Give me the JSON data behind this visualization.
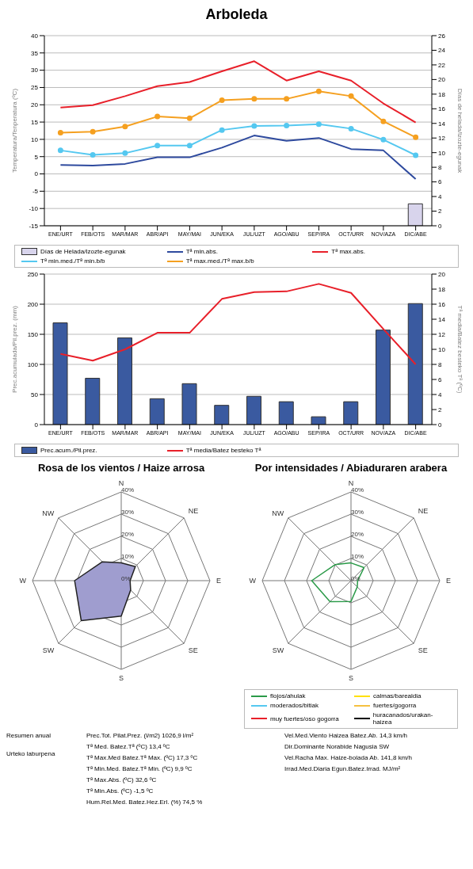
{
  "chart_data": [
    {
      "type": "line",
      "title": "Arboleda",
      "categories": [
        "ENE/URT",
        "FEB/OTS",
        "MAR/MAR",
        "ABR/API",
        "MAY/MAI",
        "JUN/EKA",
        "JUL/UZT",
        "AGO/ABU",
        "SEP/IRA",
        "OCT/URR",
        "NOV/AZA",
        "DIC/ABE"
      ],
      "ylabel": "Temperatura/Tenperatura (ºC)",
      "y2label": "Días de helada/Izozte-egunak",
      "ylim": [
        -15,
        40
      ],
      "yticks": [
        -15,
        -10,
        -5,
        0,
        5,
        10,
        15,
        20,
        25,
        30,
        35,
        40
      ],
      "y2lim": [
        0,
        26
      ],
      "y2ticks": [
        0,
        2,
        4,
        6,
        8,
        10,
        12,
        14,
        16,
        18,
        20,
        22,
        24,
        26
      ],
      "grid": "y",
      "legend": "bottom",
      "series": [
        {
          "name": "Días de Helada/Izozte-egunak",
          "type": "bar",
          "axis": "y2",
          "color": "#d8d4ec",
          "values": [
            0,
            0,
            0,
            0,
            0,
            0,
            0,
            0,
            0,
            0,
            0,
            3
          ]
        },
        {
          "name": "Tª min.abs.",
          "color": "#2e4a9e",
          "marker": "none",
          "values": [
            2.6,
            2.4,
            2.9,
            4.8,
            4.8,
            7.6,
            11.1,
            9.6,
            10.4,
            7.2,
            6.8,
            -1.5
          ]
        },
        {
          "name": "Tª max.abs.",
          "color": "#e8202a",
          "marker": "none",
          "values": [
            19.2,
            19.9,
            22.5,
            25.4,
            26.6,
            29.7,
            32.6,
            27,
            29.7,
            27,
            20.4,
            14.9
          ]
        },
        {
          "name": "Tª min.med./Tª min.b/b",
          "color": "#55c8f0",
          "marker": "circle",
          "values": [
            6.8,
            5.5,
            6,
            8.2,
            8.2,
            12.7,
            13.9,
            14,
            14.4,
            13.1,
            9.9,
            5.4
          ]
        },
        {
          "name": "Tª max.med./Tª max.b/b",
          "color": "#f5a020",
          "marker": "circle",
          "values": [
            11.9,
            12.2,
            13.7,
            16.6,
            16.1,
            21.3,
            21.7,
            21.7,
            23.9,
            22.5,
            15.2,
            10.6
          ]
        }
      ]
    },
    {
      "type": "bar",
      "categories": [
        "ENE/URT",
        "FEB/OTS",
        "MAR/MAR",
        "ABR/API",
        "MAY/MAI",
        "JUN/EKA",
        "JUL/UZT",
        "AGO/ABU",
        "SEP/IRA",
        "OCT/URR",
        "NOV/AZA",
        "DIC/ABE"
      ],
      "ylabel": "Prec.acumulada/Pil.prez. (mm)",
      "y2label": "Tª media/Batez besteko Tª (ºC)",
      "ylim": [
        0,
        250
      ],
      "yticks": [
        0,
        50,
        100,
        150,
        200,
        250
      ],
      "y2lim": [
        0,
        20
      ],
      "y2ticks": [
        0,
        2,
        4,
        6,
        8,
        10,
        12,
        14,
        16,
        18,
        20
      ],
      "grid": "y",
      "legend": "bottom",
      "series": [
        {
          "name": "Prec.acum./Pil.prez.",
          "color": "#3a5aa0",
          "values": [
            169,
            77,
            144,
            43,
            68,
            32,
            47,
            38,
            13,
            38,
            157,
            201
          ]
        },
        {
          "name": "Tª media/Batez besteko Tª",
          "type": "line",
          "axis": "y2",
          "color": "#e8202a",
          "marker": "none",
          "values": [
            9.4,
            8.5,
            10,
            12.2,
            12.2,
            16.7,
            17.6,
            17.7,
            18.7,
            17.5,
            12.7,
            8
          ]
        }
      ]
    },
    {
      "type": "radar",
      "title": "Rosa de los vientos / Haize arrosa",
      "categories": [
        "N",
        "NE",
        "E",
        "SE",
        "S",
        "SW",
        "W",
        "NW"
      ],
      "ylim": [
        0,
        40
      ],
      "yticks": [
        {
          "value": 0,
          "label": "0%"
        },
        {
          "value": 10,
          "label": "10%"
        },
        {
          "value": 20,
          "label": "20%"
        },
        {
          "value": 30,
          "label": "30%"
        },
        {
          "value": 40,
          "label": "40%"
        }
      ],
      "grid": true,
      "series": [
        {
          "type": "area",
          "color": "#9f9dcf",
          "values": [
            8,
            9,
            4,
            6,
            16,
            25.5,
            21,
            12
          ]
        }
      ]
    },
    {
      "type": "radar",
      "title": "Por intensidades / Abiaduraren arabera",
      "categories": [
        "N",
        "NE",
        "E",
        "SE",
        "S",
        "SW",
        "W",
        "NW"
      ],
      "ylim": [
        0,
        40
      ],
      "yticks": [
        {
          "value": 0,
          "label": "0%"
        },
        {
          "value": 10,
          "label": "10%"
        },
        {
          "value": 20,
          "label": "20%"
        },
        {
          "value": 30,
          "label": "30%"
        },
        {
          "value": 40,
          "label": "40%"
        }
      ],
      "grid": true,
      "legend": "bottom",
      "series": [
        {
          "name": "flojos/ahulak",
          "color": "#2a9a48",
          "values": [
            8,
            8.3,
            3,
            4,
            9.4,
            13.4,
            17.7,
            10.2
          ]
        },
        {
          "name": "calmas/barealdia",
          "color": "#ffe000",
          "values": [
            null,
            null,
            null,
            null,
            null,
            null,
            null,
            null
          ]
        },
        {
          "name": "moderados/bitiak",
          "color": "#55c8f0",
          "values": [
            null,
            null,
            null,
            null,
            null,
            null,
            null,
            null
          ]
        },
        {
          "name": "fuertes/gogorra",
          "color": "#f5c040",
          "values": [
            null,
            null,
            null,
            null,
            null,
            null,
            null,
            null
          ]
        },
        {
          "name": "muy fuertes/oso gogorra",
          "color": "#e8202a",
          "values": [
            null,
            null,
            null,
            null,
            null,
            null,
            null,
            null
          ]
        },
        {
          "name": "huracanados/urakan-haizea",
          "color": "#000000",
          "values": [
            null,
            null,
            null,
            null,
            null,
            null,
            null,
            null
          ]
        }
      ]
    },
    {
      "type": "other",
      "annotations": [
        "Resumen anual",
        "Urteko laburpena",
        "Prec.Tot. Pilat.Prez. (l/m2) 1026,9 l/m²",
        "Tª Med. Batez.Tª (ºC) 13,4 ºC",
        "Tª Max.Med Batez.Tª Max. (ºC) 17,3 ºC",
        "Tª Min.Med. Batez.Tª Min. (ºC) 9,9 ºC",
        "Tª Max.Abs. (ºC) 32,6 ºC",
        "Tª Min.Abs. (ºC) -1,5 ºC",
        "Hum.Rel.Med. Batez.Hez.Erl. (%) 74,5 %",
        "Vel.Med.Viento Haizea Batez.Ab. 14,3 km/h",
        "Dir.Dominante Norabide Nagusia SW",
        "Vel.Racha Max. Haize-bolada Ab. 141,8 km/h",
        "Irrad.Med.Diaria Egun.Batez.Irrad. MJ/m²"
      ]
    }
  ]
}
